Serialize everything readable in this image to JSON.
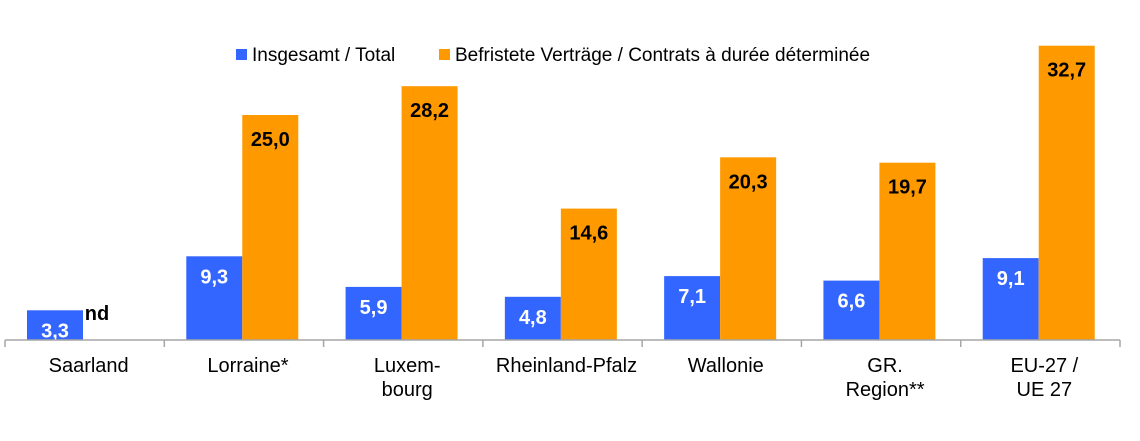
{
  "chart_data": {
    "type": "bar",
    "categories": [
      [
        "Saarland"
      ],
      [
        "Lorraine*"
      ],
      [
        "Luxem-",
        "bourg"
      ],
      [
        "Rheinland-Pfalz"
      ],
      [
        "Wallonie"
      ],
      [
        "GR.",
        "Region**"
      ],
      [
        "EU-27 /",
        "UE 27"
      ]
    ],
    "series": [
      {
        "name": "Insgesamt / Total",
        "color": "#3366ff",
        "values": [
          3.3,
          9.3,
          5.9,
          4.8,
          7.1,
          6.6,
          9.1
        ],
        "labels": [
          "3,3",
          "9,3",
          "5,9",
          "4,8",
          "7,1",
          "6,6",
          "9,1"
        ]
      },
      {
        "name": "Befristete Verträge / Contrats à durée déterminée",
        "color": "#ff9900",
        "values": [
          null,
          25.0,
          28.2,
          14.6,
          20.3,
          19.7,
          32.7
        ],
        "labels": [
          "nd",
          "25,0",
          "28,2",
          "14,6",
          "20,3",
          "19,7",
          "32,7"
        ]
      }
    ],
    "ylim": [
      0,
      35
    ],
    "legend": "top-center",
    "grid": false,
    "title": "",
    "xlabel": "",
    "ylabel": ""
  }
}
